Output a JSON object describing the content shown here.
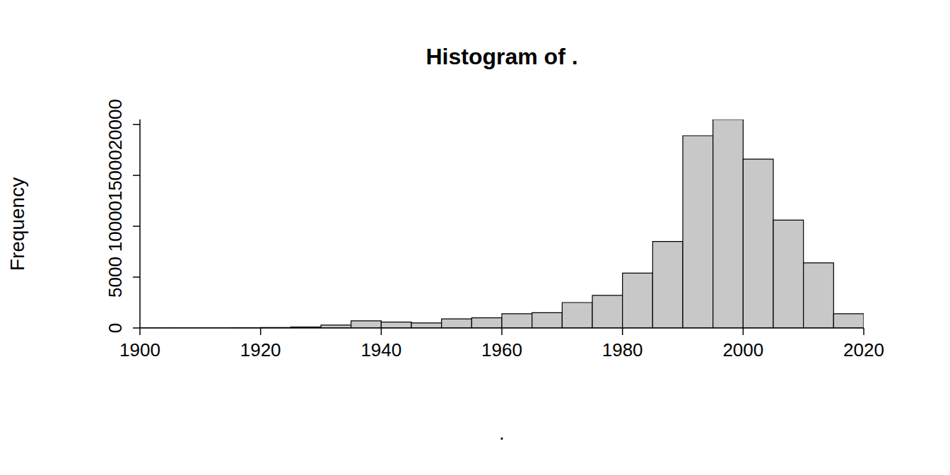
{
  "chart_data": {
    "type": "histogram",
    "title": "Histogram of .",
    "x_label": ".",
    "y_label": "Frequency",
    "bins": [
      1900,
      1905,
      1910,
      1915,
      1920,
      1925,
      1930,
      1935,
      1940,
      1945,
      1950,
      1955,
      1960,
      1965,
      1970,
      1975,
      1980,
      1985,
      1990,
      1995,
      2000,
      2005,
      2010,
      2015,
      2020
    ],
    "counts": [
      5,
      5,
      10,
      20,
      50,
      100,
      280,
      700,
      580,
      500,
      900,
      1000,
      1400,
      1500,
      2500,
      3200,
      5400,
      8500,
      18900,
      20500,
      16600,
      10600,
      6400,
      1400
    ],
    "color": "#c8c8c8",
    "xlim": [
      1900,
      2020
    ],
    "xticks": [
      1900,
      1920,
      1940,
      1960,
      1980,
      2000,
      2020
    ],
    "ylim": [
      0,
      20500
    ],
    "yticks": [
      0,
      5000,
      10000,
      15000,
      20000
    ],
    "grid": false
  }
}
